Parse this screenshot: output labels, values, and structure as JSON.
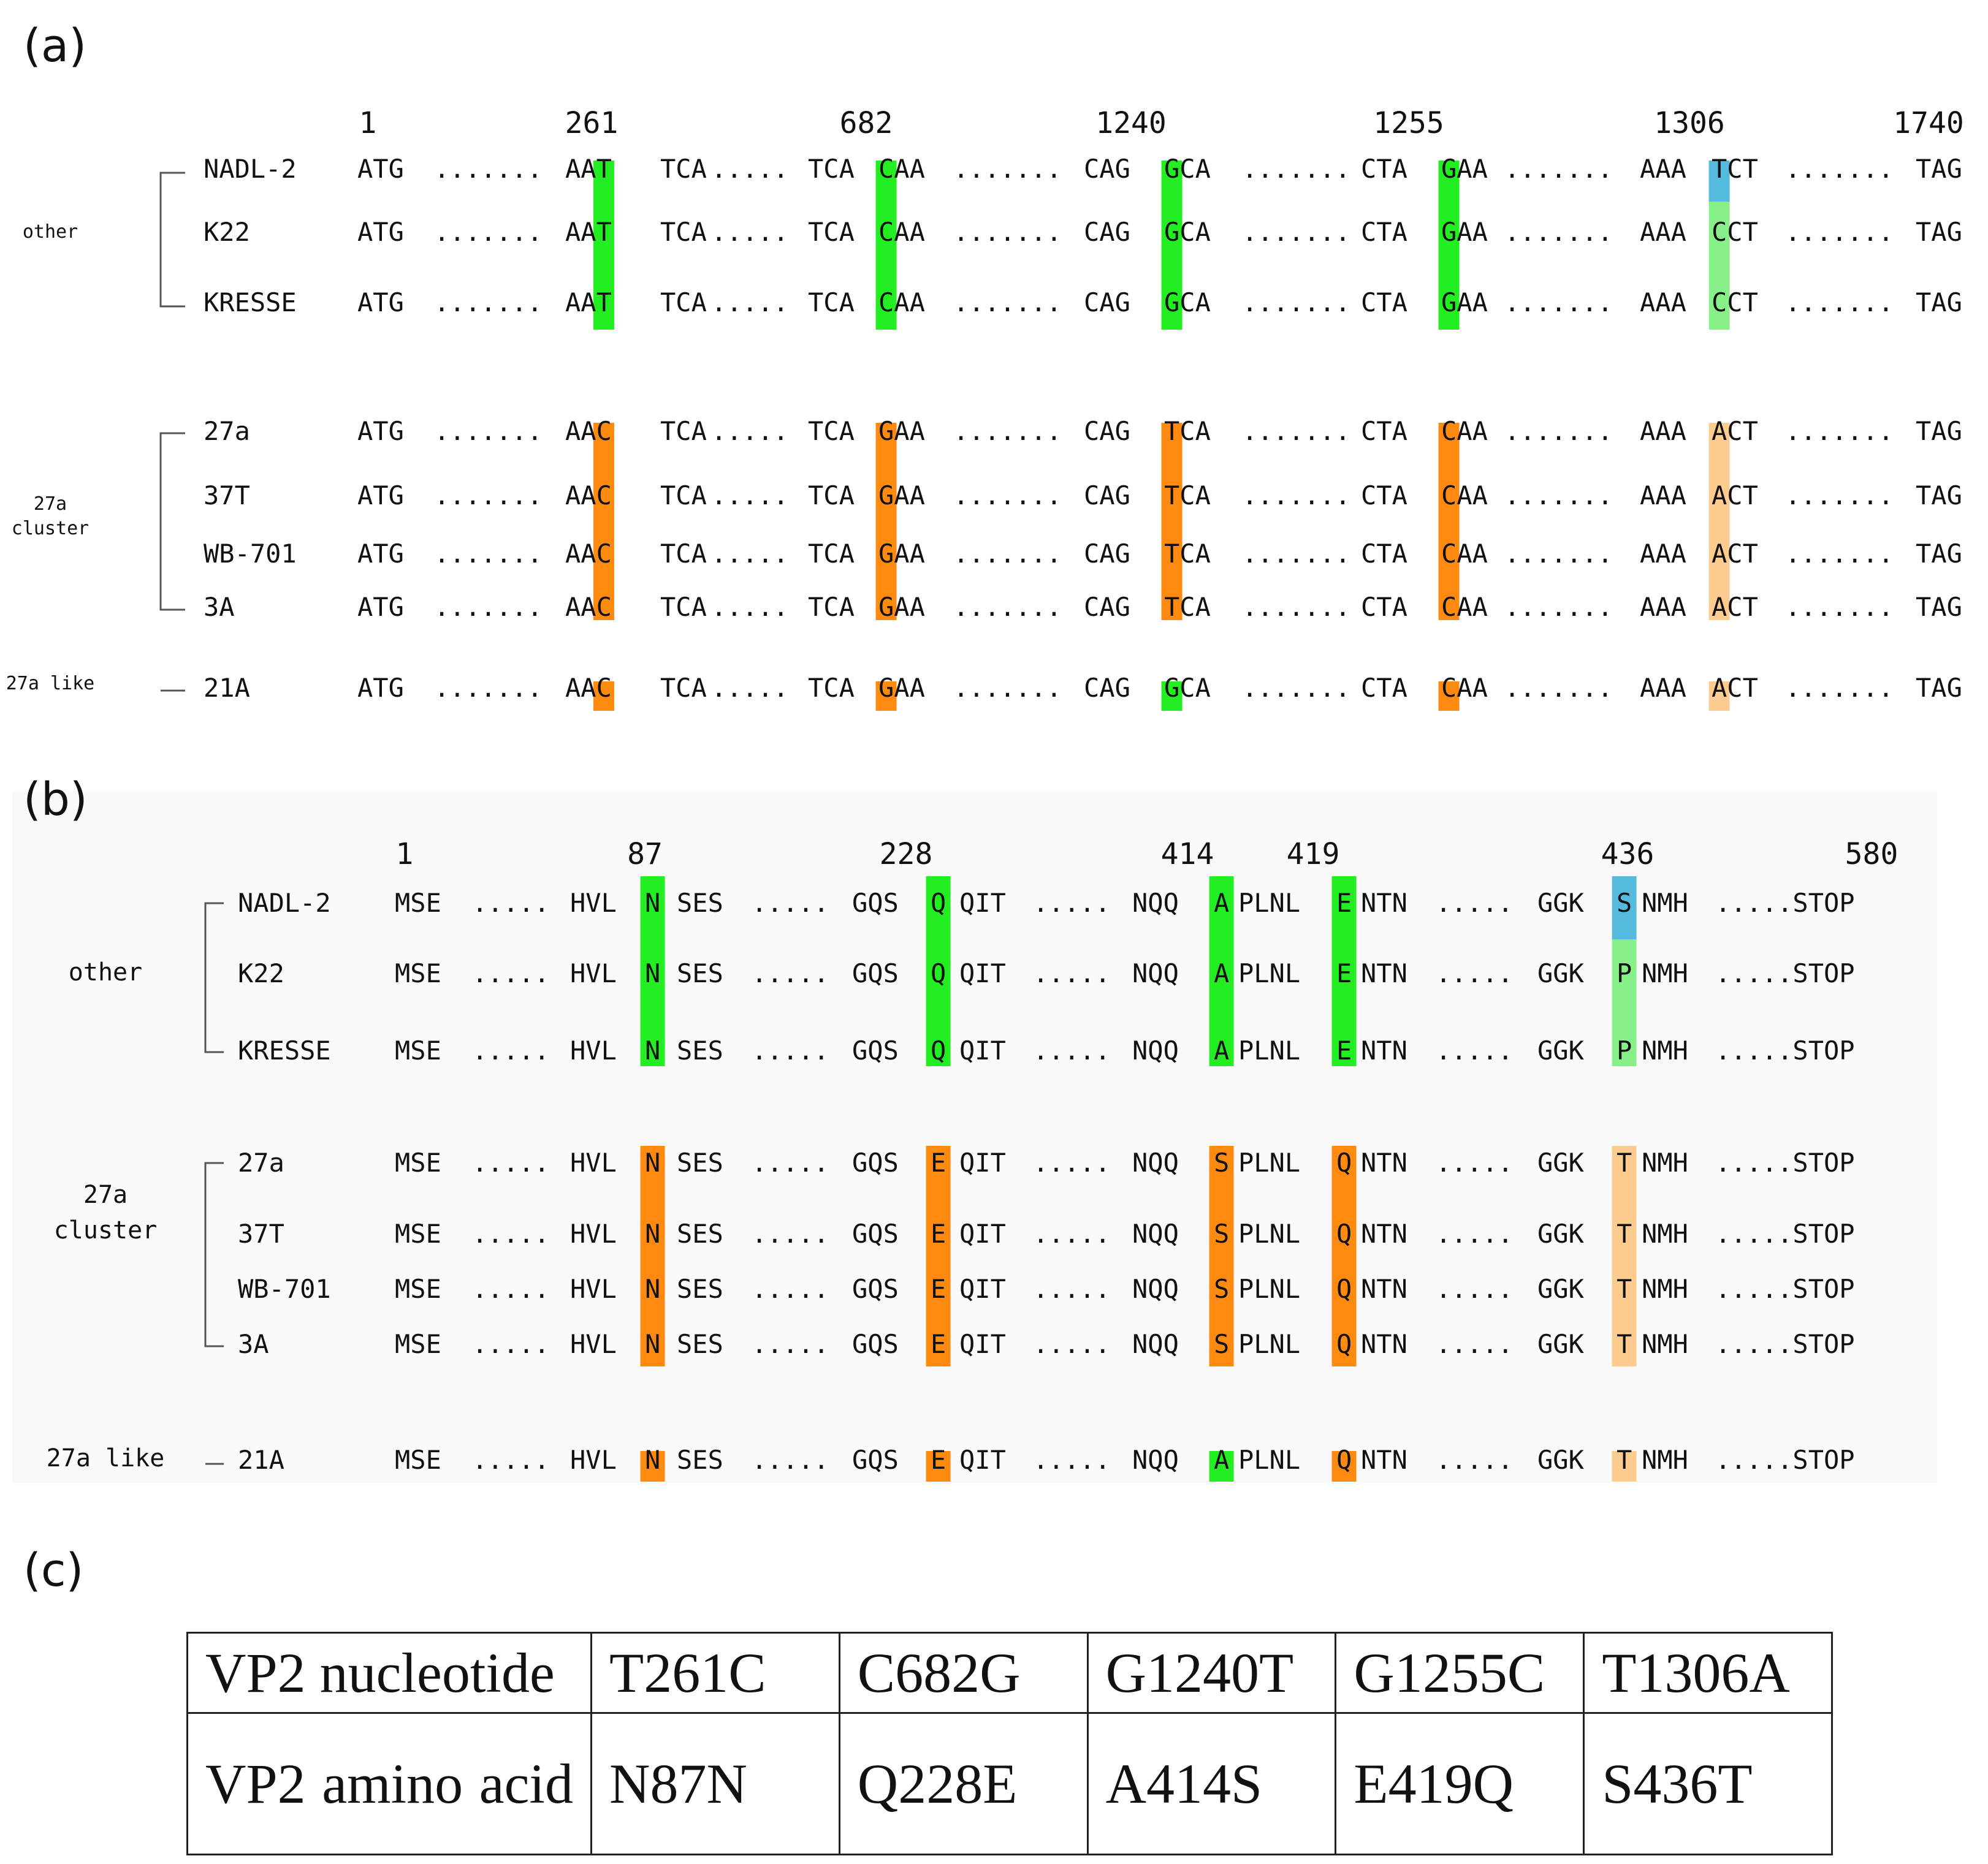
{
  "colors": {
    "green": "#22ee22",
    "light_green": "#88f088",
    "orange": "#ff8a10",
    "light_orange": "#ffcc90",
    "blue": "#55bbdd",
    "text": "#111111",
    "bracket": "#555555"
  },
  "panels": [
    {
      "label": "(a)",
      "positions": [
        "1",
        "261",
        "682",
        "1240",
        "1255",
        "1306",
        "1740"
      ],
      "groups": [
        {
          "label": "other",
          "rows": [
            0,
            1,
            2
          ]
        },
        {
          "label": "27a cluster",
          "rows": [
            3,
            4,
            5,
            6
          ]
        },
        {
          "label": "27a like",
          "rows": [
            7
          ]
        }
      ],
      "rows": [
        {
          "name": "NADL-2",
          "tokens": [
            "ATG",
            ".......",
            "AAT",
            "TCA",
            ".....",
            "TCA",
            "CAA",
            ".......",
            "CAG",
            "GCA",
            ".......",
            "CTA",
            "GAA",
            ".......",
            "AAA",
            "TCT",
            ".......",
            "TAG"
          ],
          "hl": [
            "green",
            "green",
            "green",
            "green",
            "blue"
          ]
        },
        {
          "name": "K22",
          "tokens": [
            "ATG",
            ".......",
            "AAT",
            "TCA",
            ".....",
            "TCA",
            "CAA",
            ".......",
            "CAG",
            "GCA",
            ".......",
            "CTA",
            "GAA",
            ".......",
            "AAA",
            "CCT",
            ".......",
            "TAG"
          ],
          "hl": [
            "green",
            "green",
            "green",
            "green",
            "light_green"
          ]
        },
        {
          "name": "KRESSE",
          "tokens": [
            "ATG",
            ".......",
            "AAT",
            "TCA",
            ".....",
            "TCA",
            "CAA",
            ".......",
            "CAG",
            "GCA",
            ".......",
            "CTA",
            "GAA",
            ".......",
            "AAA",
            "CCT",
            ".......",
            "TAG"
          ],
          "hl": [
            "green",
            "green",
            "green",
            "green",
            "light_green"
          ]
        },
        {
          "name": "27a",
          "tokens": [
            "ATG",
            ".......",
            "AAC",
            "TCA",
            ".....",
            "TCA",
            "GAA",
            ".......",
            "CAG",
            "TCA",
            ".......",
            "CTA",
            "CAA",
            ".......",
            "AAA",
            "ACT",
            ".......",
            "TAG"
          ],
          "hl": [
            "orange",
            "orange",
            "orange",
            "orange",
            "light_orange"
          ]
        },
        {
          "name": "37T",
          "tokens": [
            "ATG",
            ".......",
            "AAC",
            "TCA",
            ".....",
            "TCA",
            "GAA",
            ".......",
            "CAG",
            "TCA",
            ".......",
            "CTA",
            "CAA",
            ".......",
            "AAA",
            "ACT",
            ".......",
            "TAG"
          ],
          "hl": [
            "orange",
            "orange",
            "orange",
            "orange",
            "light_orange"
          ]
        },
        {
          "name": "WB-701",
          "tokens": [
            "ATG",
            ".......",
            "AAC",
            "TCA",
            ".....",
            "TCA",
            "GAA",
            ".......",
            "CAG",
            "TCA",
            ".......",
            "CTA",
            "CAA",
            ".......",
            "AAA",
            "ACT",
            ".......",
            "TAG"
          ],
          "hl": [
            "orange",
            "orange",
            "orange",
            "orange",
            "light_orange"
          ]
        },
        {
          "name": "3A",
          "tokens": [
            "ATG",
            ".......",
            "AAC",
            "TCA",
            ".....",
            "TCA",
            "GAA",
            ".......",
            "CAG",
            "TCA",
            ".......",
            "CTA",
            "CAA",
            ".......",
            "AAA",
            "ACT",
            ".......",
            "TAG"
          ],
          "hl": [
            "orange",
            "orange",
            "orange",
            "orange",
            "light_orange"
          ]
        },
        {
          "name": "21A",
          "tokens": [
            "ATG",
            ".......",
            "AAC",
            "TCA",
            ".....",
            "TCA",
            "GAA",
            ".......",
            "CAG",
            "GCA",
            ".......",
            "CTA",
            "CAA",
            ".......",
            "AAA",
            "ACT",
            ".......",
            "TAG"
          ],
          "hl": [
            "orange",
            "orange",
            "green",
            "orange",
            "light_orange"
          ]
        }
      ]
    },
    {
      "label": "(b)",
      "positions": [
        "1",
        "87",
        "228",
        "414",
        "419",
        "436",
        "580"
      ],
      "groups": [
        {
          "label": "other",
          "rows": [
            0,
            1,
            2
          ]
        },
        {
          "label": "27a cluster",
          "rows": [
            3,
            4,
            5,
            6
          ]
        },
        {
          "label": "27a like",
          "rows": [
            7
          ]
        }
      ],
      "rows": [
        {
          "name": "NADL-2",
          "tokens": [
            "MSE",
            ".....",
            "HVL",
            "N",
            "SES",
            ".....",
            "GQS",
            "Q",
            "QIT",
            ".....",
            "NQQ",
            "A",
            "PLNL",
            "E",
            "NTN",
            ".....",
            "GGK",
            "S",
            "NMH",
            ".....STOP"
          ],
          "hl": [
            "green",
            "green",
            "green",
            "green",
            "blue"
          ]
        },
        {
          "name": "K22",
          "tokens": [
            "MSE",
            ".....",
            "HVL",
            "N",
            "SES",
            ".....",
            "GQS",
            "Q",
            "QIT",
            ".....",
            "NQQ",
            "A",
            "PLNL",
            "E",
            "NTN",
            ".....",
            "GGK",
            "P",
            "NMH",
            ".....STOP"
          ],
          "hl": [
            "green",
            "green",
            "green",
            "green",
            "light_green"
          ]
        },
        {
          "name": "KRESSE",
          "tokens": [
            "MSE",
            ".....",
            "HVL",
            "N",
            "SES",
            ".....",
            "GQS",
            "Q",
            "QIT",
            ".....",
            "NQQ",
            "A",
            "PLNL",
            "E",
            "NTN",
            ".....",
            "GGK",
            "P",
            "NMH",
            ".....STOP"
          ],
          "hl": [
            "green",
            "green",
            "green",
            "green",
            "light_green"
          ]
        },
        {
          "name": "27a",
          "tokens": [
            "MSE",
            ".....",
            "HVL",
            "N",
            "SES",
            ".....",
            "GQS",
            "E",
            "QIT",
            ".....",
            "NQQ",
            "S",
            "PLNL",
            "Q",
            "NTN",
            ".....",
            "GGK",
            "T",
            "NMH",
            ".....STOP"
          ],
          "hl": [
            "orange",
            "orange",
            "orange",
            "orange",
            "light_orange"
          ]
        },
        {
          "name": "37T",
          "tokens": [
            "MSE",
            ".....",
            "HVL",
            "N",
            "SES",
            ".....",
            "GQS",
            "E",
            "QIT",
            ".....",
            "NQQ",
            "S",
            "PLNL",
            "Q",
            "NTN",
            ".....",
            "GGK",
            "T",
            "NMH",
            ".....STOP"
          ],
          "hl": [
            "orange",
            "orange",
            "orange",
            "orange",
            "light_orange"
          ]
        },
        {
          "name": "WB-701",
          "tokens": [
            "MSE",
            ".....",
            "HVL",
            "N",
            "SES",
            ".....",
            "GQS",
            "E",
            "QIT",
            ".....",
            "NQQ",
            "S",
            "PLNL",
            "Q",
            "NTN",
            ".....",
            "GGK",
            "T",
            "NMH",
            ".....STOP"
          ],
          "hl": [
            "orange",
            "orange",
            "orange",
            "orange",
            "light_orange"
          ]
        },
        {
          "name": "3A",
          "tokens": [
            "MSE",
            ".....",
            "HVL",
            "N",
            "SES",
            ".....",
            "GQS",
            "E",
            "QIT",
            ".....",
            "NQQ",
            "S",
            "PLNL",
            "Q",
            "NTN",
            ".....",
            "GGK",
            "T",
            "NMH",
            ".....STOP"
          ],
          "hl": [
            "orange",
            "orange",
            "orange",
            "orange",
            "light_orange"
          ]
        },
        {
          "name": "21A",
          "tokens": [
            "MSE",
            ".....",
            "HVL",
            "N",
            "SES",
            ".....",
            "GQS",
            "E",
            "QIT",
            ".....",
            "NQQ",
            "A",
            "PLNL",
            "Q",
            "NTN",
            ".....",
            "GGK",
            "T",
            "NMH",
            ".....STOP"
          ],
          "hl": [
            "orange",
            "orange",
            "green",
            "orange",
            "light_orange"
          ]
        }
      ]
    },
    {
      "label": "(c)"
    }
  ],
  "table": {
    "rows": [
      {
        "label": "VP2 nucleotide",
        "cells": [
          "T261C",
          "C682G",
          "G1240T",
          "G1255C",
          "T1306A"
        ]
      },
      {
        "label": "VP2 amino acid",
        "cells": [
          "N87N",
          "Q228E",
          "A414S",
          "E419Q",
          "S436T"
        ]
      }
    ]
  }
}
